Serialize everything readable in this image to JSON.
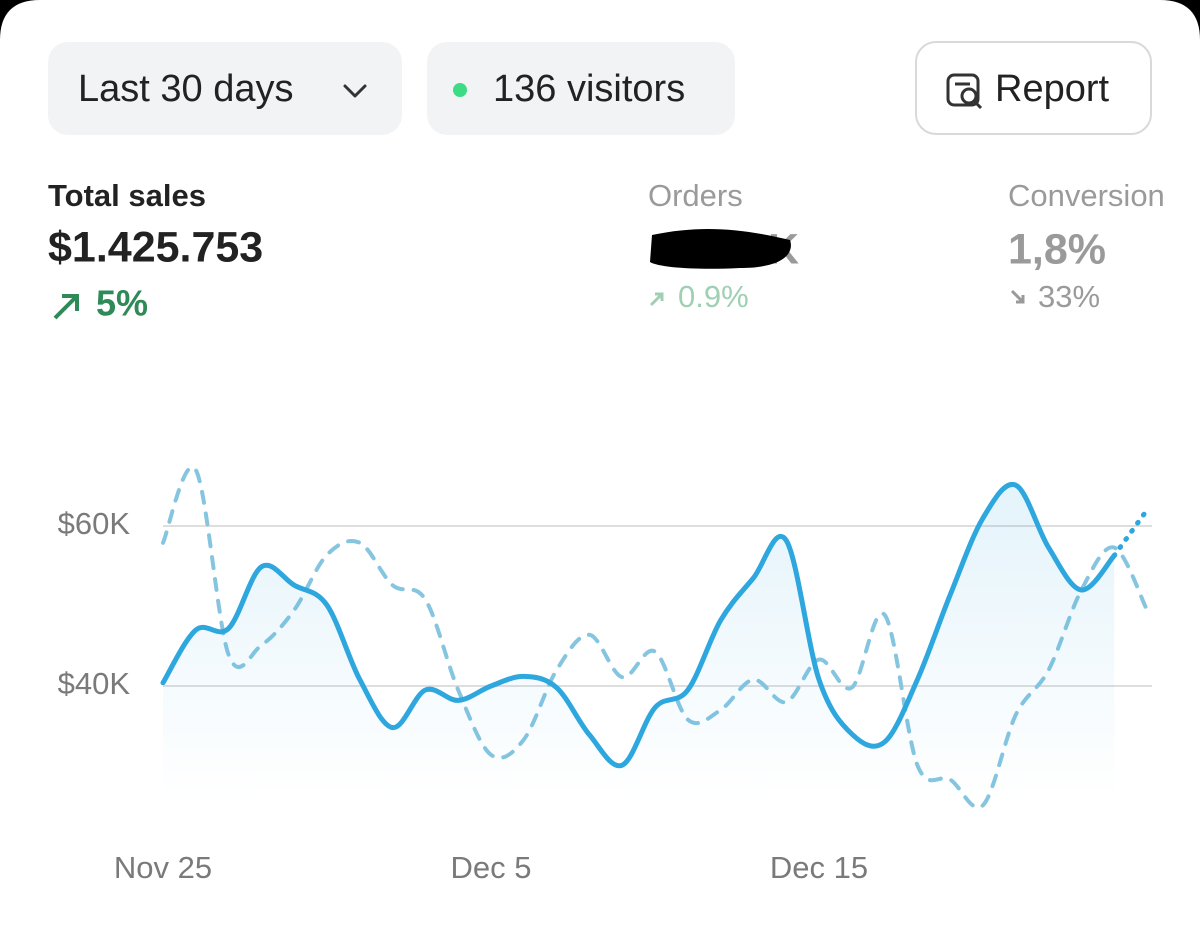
{
  "filters": {
    "period": "Last 30 days",
    "visitors": "136 visitors",
    "report": "Report"
  },
  "metrics": [
    {
      "label": "Total sales",
      "value": "$1.425.753",
      "change": "5%"
    },
    {
      "label": "Orders",
      "value": "K",
      "change": "0.9%"
    },
    {
      "label": "Conversion",
      "value": "1,8%",
      "change": "33%"
    }
  ],
  "chart_data": {
    "type": "line",
    "categories": [
      "Nov 25",
      null,
      null,
      null,
      null,
      null,
      null,
      null,
      null,
      null,
      "Dec 5",
      null,
      null,
      null,
      null,
      null,
      null,
      null,
      null,
      null,
      "Dec 15",
      null,
      null,
      null,
      null,
      null,
      null,
      null,
      null,
      null,
      null
    ],
    "series": [
      {
        "color": "#2ea6de",
        "line_style": "solid",
        "fill": true,
        "values": [
          40400,
          47000,
          47200,
          54900,
          52600,
          50100,
          40800,
          34800,
          39500,
          38200,
          40000,
          41200,
          39800,
          33900,
          30100,
          37300,
          39500,
          48200,
          53500,
          58200,
          40800,
          34000,
          33000,
          40800,
          51400,
          61000,
          65100,
          57300,
          52000,
          56300,
          62000
        ]
      },
      {
        "color": "#85c5e0",
        "line_style": "dashed",
        "fill": false,
        "values": [
          57900,
          67000,
          43900,
          45100,
          49500,
          56400,
          57900,
          52600,
          50800,
          39500,
          31400,
          33300,
          42000,
          46400,
          41100,
          44300,
          35800,
          37000,
          40800,
          38000,
          43300,
          39800,
          48900,
          30100,
          28300,
          25100,
          36400,
          42000,
          52000,
          57300,
          49500
        ]
      }
    ],
    "ylim": [
      20000,
      70000
    ],
    "yticks": [
      {
        "value": 40000,
        "label": "$40K"
      },
      {
        "value": 60000,
        "label": "$60K"
      }
    ],
    "grid": true
  }
}
